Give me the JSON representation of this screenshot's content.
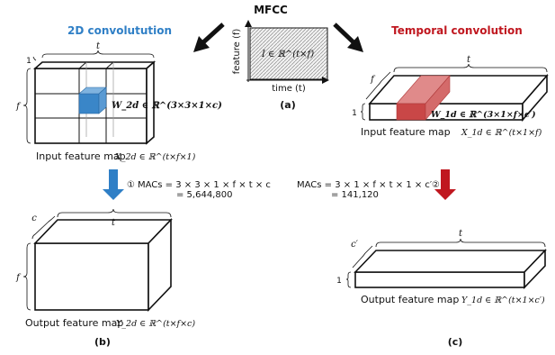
{
  "colors": {
    "blue": "#2f7fc6",
    "blue_light": "#7fb3df",
    "red": "#c0171f",
    "red_light": "#e08a8a",
    "black": "#111111",
    "hatch": "#9a9a9a"
  },
  "center": {
    "title": "MFCC",
    "feature_axis": "feature (f)",
    "time_axis": "time (t)",
    "matrix_label": "I ∈ ℝ^(t×f)",
    "panel_label": "(a)"
  },
  "left": {
    "title": "2D convolutution",
    "dim_one": "1",
    "dim_t_top": "t",
    "dim_f": "f",
    "kernel_label": "W_2d ∈ ℝ^(3×3×1×c)",
    "input_caption": "Input feature map",
    "input_formula": "X_2d ∈ ℝ^(t×f×1)",
    "macs_marker": "①",
    "macs_line1": "MACs = 3 × 3 × 1 × f × t × c",
    "macs_line2": "= 5,644,800",
    "dim_c": "c",
    "dim_t_out": "t",
    "dim_f_out": "f",
    "output_caption": "Output feature map",
    "output_formula": "Y_2d ∈ ℝ^(t×f×c)",
    "panel_label": "(b)"
  },
  "right": {
    "title": "Temporal convolution",
    "dim_t_top": "t",
    "dim_f": "f",
    "dim_one": "1",
    "kernel_label": "W_1d ∈ ℝ^(3×1×f×c′)",
    "input_caption": "Input feature map",
    "input_formula": "X_1d ∈ ℝ^(t×1×f)",
    "macs_line1": "MACs = 3 × 1 × f × t × 1 × c′",
    "macs_marker": "②",
    "macs_line2": "= 141,120",
    "dim_t_out": "t",
    "dim_c": "c′",
    "dim_one_out": "1",
    "output_caption": "Output feature map",
    "output_formula": "Y_1d ∈ ℝ^(t×1×c′)",
    "panel_label": "(c)"
  }
}
